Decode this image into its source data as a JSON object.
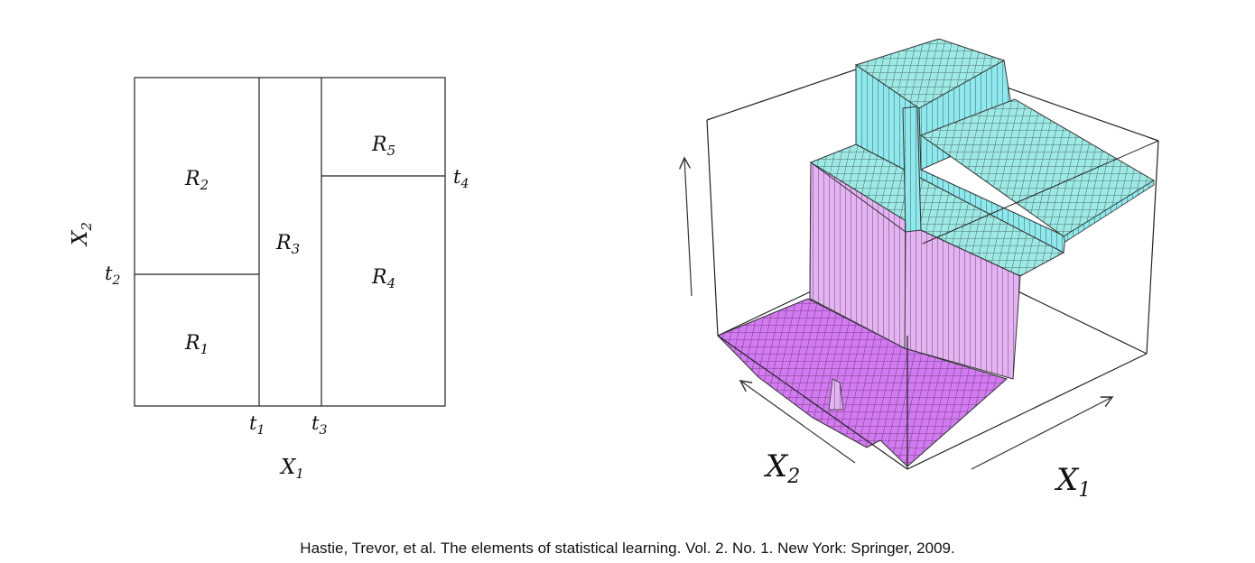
{
  "left_panel": {
    "regions": [
      {
        "base": "R",
        "sub": "1"
      },
      {
        "base": "R",
        "sub": "2"
      },
      {
        "base": "R",
        "sub": "3"
      },
      {
        "base": "R",
        "sub": "4"
      },
      {
        "base": "R",
        "sub": "5"
      }
    ],
    "split_labels": [
      {
        "base": "t",
        "sub": "1"
      },
      {
        "base": "t",
        "sub": "2"
      },
      {
        "base": "t",
        "sub": "3"
      },
      {
        "base": "t",
        "sub": "4"
      }
    ],
    "x_axis": {
      "base": "X",
      "sub": "1"
    },
    "y_axis": {
      "base": "X",
      "sub": "2"
    }
  },
  "right_panel": {
    "x1_axis": {
      "base": "X",
      "sub": "1"
    },
    "x2_axis": {
      "base": "X",
      "sub": "2"
    },
    "colors": {
      "low_surface": "#d27af0",
      "mid_wall": "#e4b3f2",
      "high_surface": "#9ee9e4",
      "high_wall": "#8ee8ec",
      "grid_line": "#3a3a3a"
    }
  },
  "caption": "Hastie, Trevor, et al. The elements of statistical learning. Vol. 2. No. 1. New York: Springer, 2009."
}
